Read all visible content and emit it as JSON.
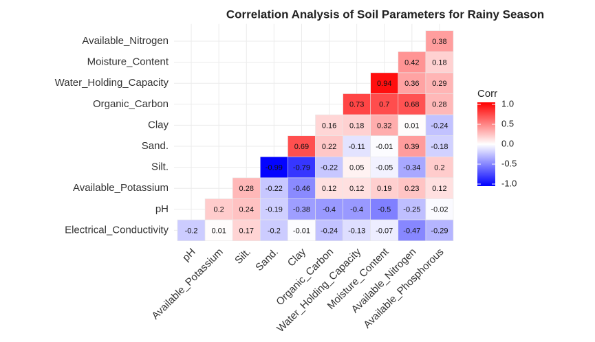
{
  "chart_data": {
    "type": "heatmap",
    "title": "Correlation Analysis of Soil Parameters for Rainy Season",
    "x": [
      "pH",
      "Available_Potassium",
      "Silt.",
      "Sand.",
      "Clay",
      "Organic_Carbon",
      "Water_Holding_Capacity",
      "Moisture_Content",
      "Available_Nitrogen",
      "Available_Phosphorous"
    ],
    "y": [
      "Available_Nitrogen",
      "Moisture_Content",
      "Water_Holding_Capacity",
      "Organic_Carbon",
      "Clay",
      "Sand.",
      "Silt.",
      "Available_Potassium",
      "pH",
      "Electrical_Conductivity"
    ],
    "values": [
      [
        null,
        null,
        null,
        null,
        null,
        null,
        null,
        null,
        null,
        0.38
      ],
      [
        null,
        null,
        null,
        null,
        null,
        null,
        null,
        null,
        0.42,
        0.18
      ],
      [
        null,
        null,
        null,
        null,
        null,
        null,
        null,
        0.94,
        0.36,
        0.29
      ],
      [
        null,
        null,
        null,
        null,
        null,
        null,
        0.73,
        0.7,
        0.68,
        0.28
      ],
      [
        null,
        null,
        null,
        null,
        null,
        0.16,
        0.18,
        0.32,
        0.01,
        -0.24
      ],
      [
        null,
        null,
        null,
        null,
        0.69,
        0.22,
        -0.11,
        -0.01,
        0.39,
        -0.18
      ],
      [
        null,
        null,
        null,
        -0.99,
        -0.79,
        -0.22,
        0.05,
        -0.05,
        -0.34,
        0.2
      ],
      [
        null,
        null,
        0.28,
        -0.22,
        -0.46,
        0.12,
        0.12,
        0.19,
        0.23,
        0.12
      ],
      [
        null,
        0.2,
        0.24,
        -0.19,
        -0.38,
        -0.4,
        -0.4,
        -0.5,
        -0.25,
        -0.02
      ],
      [
        -0.2,
        0.01,
        0.17,
        -0.2,
        -0.01,
        -0.24,
        -0.13,
        -0.07,
        -0.47,
        -0.29
      ]
    ],
    "legend_title": "Corr",
    "clim": [
      -1,
      1
    ],
    "cticks": [
      {
        "value": 1,
        "label": "1.0"
      },
      0.5,
      {
        "value": 0,
        "label": "0.0"
      },
      -0.5,
      {
        "value": -1,
        "label": "-1.0"
      }
    ],
    "colors": {
      "low": "#0000ff",
      "mid": "#ffffff",
      "high": "#ff0000"
    }
  }
}
